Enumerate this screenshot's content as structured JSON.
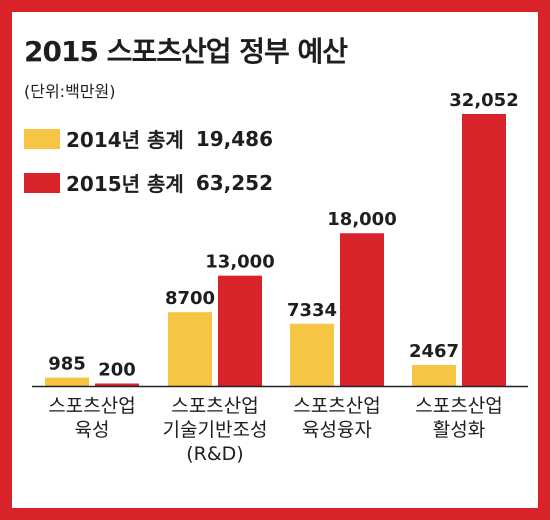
{
  "colors": {
    "y2014": "#f6c544",
    "y2015": "#d8232a",
    "frame": "#d8232a"
  },
  "chart_data": {
    "type": "bar",
    "title": "2015 스포츠산업 정부 예산",
    "unit_label": "(단위:백만원)",
    "categories": [
      [
        "스포츠산업",
        "육성"
      ],
      [
        "스포츠산업",
        "기술기반조성",
        "(R&D)"
      ],
      [
        "스포츠산업",
        "육성융자"
      ],
      [
        "스포츠산업",
        "활성화"
      ]
    ],
    "series": [
      {
        "name": "2014년 총계",
        "total": "19,486",
        "values": [
          985,
          8700,
          7334,
          2467
        ],
        "value_labels": [
          "985",
          "8700",
          "7334",
          "2467"
        ]
      },
      {
        "name": "2015년 총계",
        "total": "63,252",
        "values": [
          200,
          13000,
          18000,
          32052
        ],
        "value_labels": [
          "200",
          "13,000",
          "18,000",
          "32,052"
        ]
      }
    ],
    "ylim": [
      0,
      32052
    ],
    "grid": false,
    "legend_position": "top-left"
  }
}
